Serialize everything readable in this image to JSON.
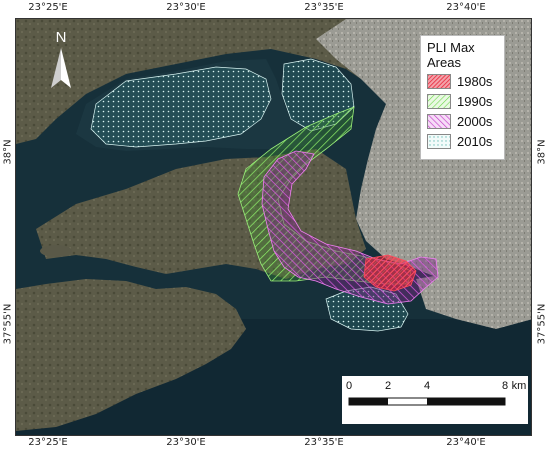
{
  "top_ticks": [
    "23°25'E",
    "23°30'E",
    "23°35'E",
    "23°40'E"
  ],
  "bottom_ticks": [
    "23°25'E",
    "23°30'E",
    "23°35'E",
    "23°40'E"
  ],
  "left_ticks": [
    "38°N",
    "37°55'N"
  ],
  "right_ticks": [
    "38°N",
    "37°55'N"
  ],
  "north_arrow": {
    "label": "N",
    "icon": "north-arrow-icon"
  },
  "legend": {
    "title_line1": "PLI Max",
    "title_line2": "Areas",
    "items": [
      {
        "label": "1980s",
        "color": "#e8253a",
        "hatch": "diagonal-dense"
      },
      {
        "label": "1990s",
        "color": "#7ddc5e",
        "hatch": "diagonal"
      },
      {
        "label": "2000s",
        "color": "#c23ac7",
        "hatch": "diagonal"
      },
      {
        "label": "2010s",
        "color": "#9fd8d4",
        "hatch": "dots"
      }
    ]
  },
  "scale_bar": {
    "labels": [
      "0",
      "2",
      "4",
      "8"
    ],
    "unit": "km"
  },
  "colors": {
    "sea": "#16303a",
    "land": "#5a5a4a",
    "urban": "#9a9a93"
  }
}
